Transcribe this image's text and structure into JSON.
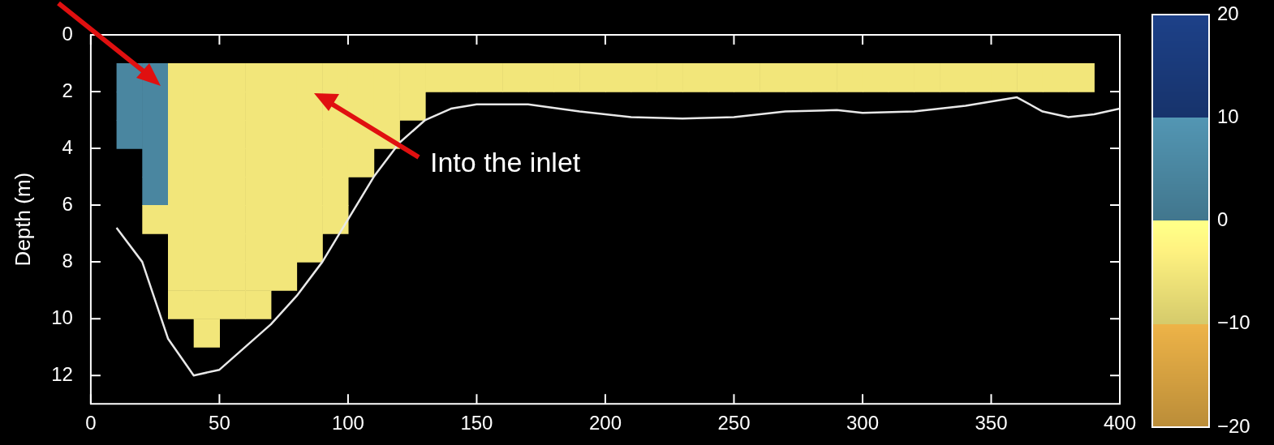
{
  "chart_data": {
    "type": "heatmap",
    "ylabel": "Depth (m)",
    "x": [
      15,
      25,
      35,
      45,
      55,
      65,
      75,
      85,
      95,
      105,
      115,
      125,
      135,
      145,
      155,
      165,
      175,
      185,
      195,
      205,
      215,
      225,
      235,
      245,
      255,
      265,
      275,
      285,
      295,
      305,
      315,
      325,
      335,
      345,
      355,
      365,
      375,
      385
    ],
    "y": [
      1.5,
      2.5,
      3.5,
      4.5,
      5.5,
      6.5,
      7.5,
      8.5,
      9.5,
      10.5
    ],
    "cells": [
      [
        5,
        5,
        -5,
        -5,
        -5,
        -5,
        -5,
        -5,
        -5,
        -5,
        -5,
        -5,
        -5,
        -5,
        -5,
        -5,
        -5,
        -5,
        -5,
        -5,
        -5,
        -5,
        -5,
        -5,
        -5,
        -5,
        -5,
        -5,
        -5,
        -5,
        -5,
        -5,
        -5,
        -5,
        -5,
        -5,
        -5,
        -5
      ],
      [
        5,
        5,
        -5,
        -5,
        -5,
        -5,
        -5,
        -5,
        -5,
        -5,
        -5,
        -5,
        null,
        null,
        null,
        null,
        null,
        null,
        null,
        null,
        null,
        null,
        null,
        null,
        null,
        null,
        null,
        null,
        null,
        null,
        null,
        null,
        null,
        null,
        null,
        null,
        null,
        null
      ],
      [
        5,
        5,
        -5,
        -5,
        -5,
        -5,
        -5,
        -5,
        -5,
        -5,
        -5,
        null,
        null,
        null,
        null,
        null,
        null,
        null,
        null,
        null,
        null,
        null,
        null,
        null,
        null,
        null,
        null,
        null,
        null,
        null,
        null,
        null,
        null,
        null,
        null,
        null,
        null,
        null
      ],
      [
        null,
        5,
        -5,
        -5,
        -5,
        -5,
        -5,
        -5,
        -5,
        -5,
        null,
        null,
        null,
        null,
        null,
        null,
        null,
        null,
        null,
        null,
        null,
        null,
        null,
        null,
        null,
        null,
        null,
        null,
        null,
        null,
        null,
        null,
        null,
        null,
        null,
        null,
        null,
        null
      ],
      [
        null,
        5,
        -5,
        -5,
        -5,
        -5,
        -5,
        -5,
        -5,
        null,
        null,
        null,
        null,
        null,
        null,
        null,
        null,
        null,
        null,
        null,
        null,
        null,
        null,
        null,
        null,
        null,
        null,
        null,
        null,
        null,
        null,
        null,
        null,
        null,
        null,
        null,
        null,
        null
      ],
      [
        null,
        -5,
        -5,
        -5,
        -5,
        -5,
        -5,
        -5,
        -5,
        null,
        null,
        null,
        null,
        null,
        null,
        null,
        null,
        null,
        null,
        null,
        null,
        null,
        null,
        null,
        null,
        null,
        null,
        null,
        null,
        null,
        null,
        null,
        null,
        null,
        null,
        null,
        null,
        null
      ],
      [
        null,
        null,
        -5,
        -5,
        -5,
        -5,
        -5,
        -5,
        null,
        null,
        null,
        null,
        null,
        null,
        null,
        null,
        null,
        null,
        null,
        null,
        null,
        null,
        null,
        null,
        null,
        null,
        null,
        null,
        null,
        null,
        null,
        null,
        null,
        null,
        null,
        null,
        null,
        null
      ],
      [
        null,
        null,
        -5,
        -5,
        -5,
        -5,
        -5,
        null,
        null,
        null,
        null,
        null,
        null,
        null,
        null,
        null,
        null,
        null,
        null,
        null,
        null,
        null,
        null,
        null,
        null,
        null,
        null,
        null,
        null,
        null,
        null,
        null,
        null,
        null,
        null,
        null,
        null,
        null
      ],
      [
        null,
        null,
        -5,
        -5,
        -5,
        -5,
        null,
        null,
        null,
        null,
        null,
        null,
        null,
        null,
        null,
        null,
        null,
        null,
        null,
        null,
        null,
        null,
        null,
        null,
        null,
        null,
        null,
        null,
        null,
        null,
        null,
        null,
        null,
        null,
        null,
        null,
        null,
        null
      ],
      [
        null,
        null,
        null,
        -5,
        null,
        null,
        null,
        null,
        null,
        null,
        null,
        null,
        null,
        null,
        null,
        null,
        null,
        null,
        null,
        null,
        null,
        null,
        null,
        null,
        null,
        null,
        null,
        null,
        null,
        null,
        null,
        null,
        null,
        null,
        null,
        null,
        null,
        null
      ]
    ],
    "colors": [
      "#d4a040",
      "#f2e67a",
      "#4a86a0",
      "#1a3a7a"
    ],
    "clim": [
      -20,
      20
    ],
    "cticks": [
      -20,
      -10,
      0,
      10,
      20
    ],
    "series": [
      {
        "type": "line",
        "color": "#e8e8e8",
        "x": [
          10,
          20,
          30,
          40,
          50,
          60,
          70,
          80,
          90,
          100,
          110,
          120,
          130,
          140,
          150,
          170,
          190,
          210,
          230,
          250,
          270,
          290,
          300,
          320,
          340,
          350,
          360,
          370,
          380,
          390,
          400
        ],
        "values": [
          6.8,
          8,
          10.7,
          12,
          11.8,
          11,
          10.2,
          9.2,
          8,
          6.5,
          5,
          3.8,
          3,
          2.6,
          2.45,
          2.45,
          2.7,
          2.9,
          2.95,
          2.9,
          2.7,
          2.65,
          2.75,
          2.7,
          2.5,
          2.35,
          2.2,
          2.7,
          2.9,
          2.8,
          2.6
        ]
      }
    ],
    "annotations": [
      "Into the inlet"
    ],
    "xlim": [
      0,
      400
    ],
    "xticks": [
      0,
      50,
      100,
      150,
      200,
      250,
      300,
      350,
      400
    ],
    "ylim": [
      13,
      0
    ],
    "yticks": [
      0,
      2,
      4,
      6,
      8,
      10,
      12
    ],
    "grid": false,
    "legend": false
  }
}
